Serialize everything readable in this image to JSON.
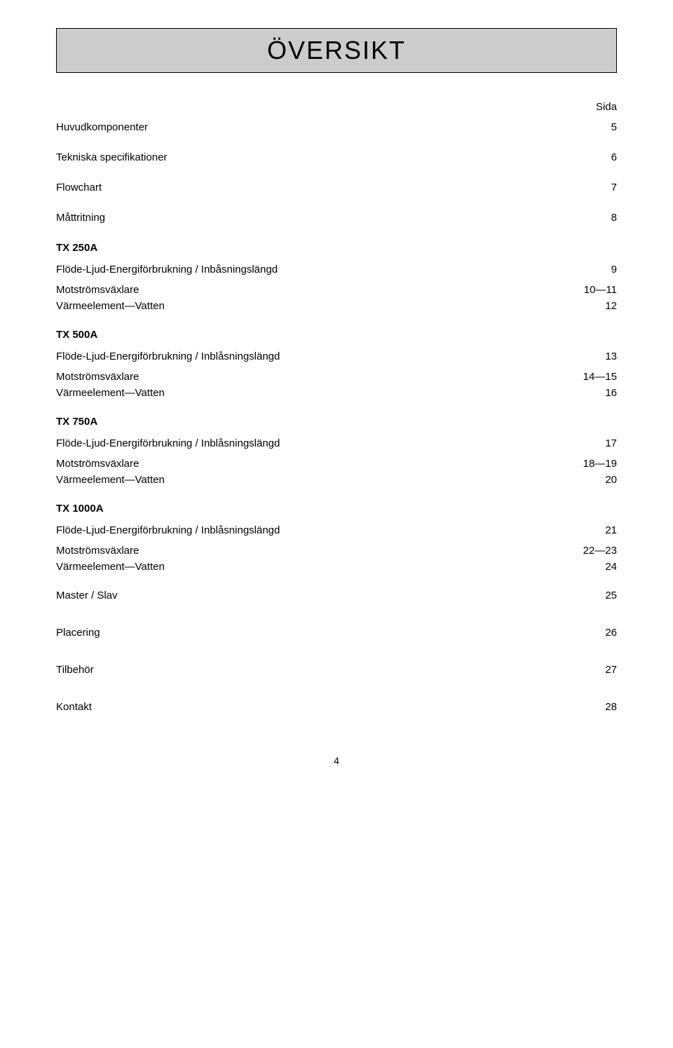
{
  "title": "ÖVERSIKT",
  "page_col_header": "Sida",
  "intro": [
    {
      "label": "Huvudkomponenter",
      "page": "5"
    },
    {
      "label": "Tekniska specifikationer",
      "page": "6"
    },
    {
      "label": "Flowchart",
      "page": "7"
    },
    {
      "label": "Måttritning",
      "page": "8"
    }
  ],
  "sections": [
    {
      "heading": "TX 250A",
      "rows": [
        {
          "label": "Flöde-Ljud-Energiförbrukning / Inbåsningslängd",
          "page": "9"
        },
        {
          "label": "Motströmsväxlare",
          "page": "10—11"
        },
        {
          "label": "Värmeelement—Vatten",
          "page": "12"
        }
      ]
    },
    {
      "heading": "TX 500A",
      "rows": [
        {
          "label": "Flöde-Ljud-Energiförbrukning / Inblåsningslängd",
          "page": "13"
        },
        {
          "label": "Motströmsväxlare",
          "page": "14—15"
        },
        {
          "label": "Värmeelement—Vatten",
          "page": "16"
        }
      ]
    },
    {
      "heading": "TX 750A",
      "rows": [
        {
          "label": "Flöde-Ljud-Energiförbrukning / Inblåsningslängd",
          "page": "17"
        },
        {
          "label": "Motströmsväxlare",
          "page": "18—19"
        },
        {
          "label": "Värmeelement—Vatten",
          "page": "20"
        }
      ]
    },
    {
      "heading": "TX 1000A",
      "rows": [
        {
          "label": "Flöde-Ljud-Energiförbrukning / Inblåsningslängd",
          "page": "21"
        },
        {
          "label": "Motströmsväxlare",
          "page": "22—23"
        },
        {
          "label": "Värmeelement—Vatten",
          "page": "24"
        }
      ]
    }
  ],
  "trailing": [
    {
      "label": "Master / Slav",
      "page": "25"
    },
    {
      "label": "Placering",
      "page": "26"
    },
    {
      "label": "Tilbehör",
      "page": "27"
    },
    {
      "label": "Kontakt",
      "page": "28"
    }
  ],
  "page_number": "4"
}
